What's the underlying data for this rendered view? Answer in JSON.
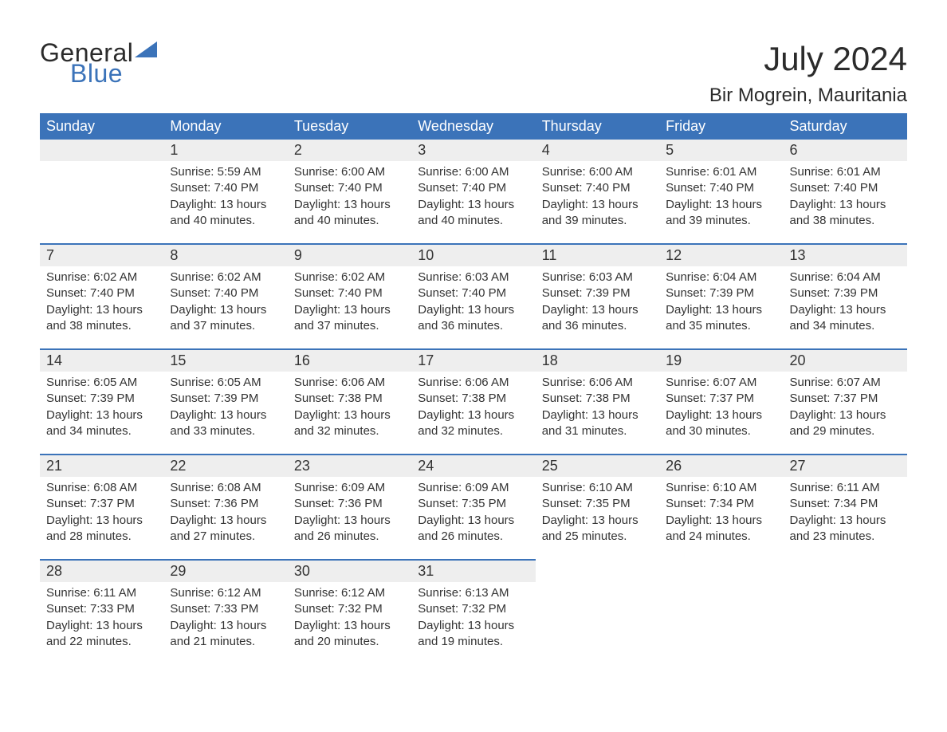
{
  "logo": {
    "top": "General",
    "bottom": "Blue"
  },
  "header": {
    "month": "July 2024",
    "location": "Bir Mogrein, Mauritania"
  },
  "colors": {
    "brand_blue": "#3b73b9",
    "header_bg": "#3b73b9",
    "header_text": "#ffffff",
    "daynum_bg": "#eeeeee",
    "text": "#333333",
    "background": "#ffffff"
  },
  "typography": {
    "month_fontsize": 42,
    "location_fontsize": 24,
    "dayheader_fontsize": 18,
    "daynum_fontsize": 18,
    "body_fontsize": 15
  },
  "day_headers": [
    "Sunday",
    "Monday",
    "Tuesday",
    "Wednesday",
    "Thursday",
    "Friday",
    "Saturday"
  ],
  "weeks": [
    [
      null,
      {
        "n": "1",
        "sunrise": "Sunrise: 5:59 AM",
        "sunset": "Sunset: 7:40 PM",
        "d1": "Daylight: 13 hours",
        "d2": "and 40 minutes."
      },
      {
        "n": "2",
        "sunrise": "Sunrise: 6:00 AM",
        "sunset": "Sunset: 7:40 PM",
        "d1": "Daylight: 13 hours",
        "d2": "and 40 minutes."
      },
      {
        "n": "3",
        "sunrise": "Sunrise: 6:00 AM",
        "sunset": "Sunset: 7:40 PM",
        "d1": "Daylight: 13 hours",
        "d2": "and 40 minutes."
      },
      {
        "n": "4",
        "sunrise": "Sunrise: 6:00 AM",
        "sunset": "Sunset: 7:40 PM",
        "d1": "Daylight: 13 hours",
        "d2": "and 39 minutes."
      },
      {
        "n": "5",
        "sunrise": "Sunrise: 6:01 AM",
        "sunset": "Sunset: 7:40 PM",
        "d1": "Daylight: 13 hours",
        "d2": "and 39 minutes."
      },
      {
        "n": "6",
        "sunrise": "Sunrise: 6:01 AM",
        "sunset": "Sunset: 7:40 PM",
        "d1": "Daylight: 13 hours",
        "d2": "and 38 minutes."
      }
    ],
    [
      {
        "n": "7",
        "sunrise": "Sunrise: 6:02 AM",
        "sunset": "Sunset: 7:40 PM",
        "d1": "Daylight: 13 hours",
        "d2": "and 38 minutes."
      },
      {
        "n": "8",
        "sunrise": "Sunrise: 6:02 AM",
        "sunset": "Sunset: 7:40 PM",
        "d1": "Daylight: 13 hours",
        "d2": "and 37 minutes."
      },
      {
        "n": "9",
        "sunrise": "Sunrise: 6:02 AM",
        "sunset": "Sunset: 7:40 PM",
        "d1": "Daylight: 13 hours",
        "d2": "and 37 minutes."
      },
      {
        "n": "10",
        "sunrise": "Sunrise: 6:03 AM",
        "sunset": "Sunset: 7:40 PM",
        "d1": "Daylight: 13 hours",
        "d2": "and 36 minutes."
      },
      {
        "n": "11",
        "sunrise": "Sunrise: 6:03 AM",
        "sunset": "Sunset: 7:39 PM",
        "d1": "Daylight: 13 hours",
        "d2": "and 36 minutes."
      },
      {
        "n": "12",
        "sunrise": "Sunrise: 6:04 AM",
        "sunset": "Sunset: 7:39 PM",
        "d1": "Daylight: 13 hours",
        "d2": "and 35 minutes."
      },
      {
        "n": "13",
        "sunrise": "Sunrise: 6:04 AM",
        "sunset": "Sunset: 7:39 PM",
        "d1": "Daylight: 13 hours",
        "d2": "and 34 minutes."
      }
    ],
    [
      {
        "n": "14",
        "sunrise": "Sunrise: 6:05 AM",
        "sunset": "Sunset: 7:39 PM",
        "d1": "Daylight: 13 hours",
        "d2": "and 34 minutes."
      },
      {
        "n": "15",
        "sunrise": "Sunrise: 6:05 AM",
        "sunset": "Sunset: 7:39 PM",
        "d1": "Daylight: 13 hours",
        "d2": "and 33 minutes."
      },
      {
        "n": "16",
        "sunrise": "Sunrise: 6:06 AM",
        "sunset": "Sunset: 7:38 PM",
        "d1": "Daylight: 13 hours",
        "d2": "and 32 minutes."
      },
      {
        "n": "17",
        "sunrise": "Sunrise: 6:06 AM",
        "sunset": "Sunset: 7:38 PM",
        "d1": "Daylight: 13 hours",
        "d2": "and 32 minutes."
      },
      {
        "n": "18",
        "sunrise": "Sunrise: 6:06 AM",
        "sunset": "Sunset: 7:38 PM",
        "d1": "Daylight: 13 hours",
        "d2": "and 31 minutes."
      },
      {
        "n": "19",
        "sunrise": "Sunrise: 6:07 AM",
        "sunset": "Sunset: 7:37 PM",
        "d1": "Daylight: 13 hours",
        "d2": "and 30 minutes."
      },
      {
        "n": "20",
        "sunrise": "Sunrise: 6:07 AM",
        "sunset": "Sunset: 7:37 PM",
        "d1": "Daylight: 13 hours",
        "d2": "and 29 minutes."
      }
    ],
    [
      {
        "n": "21",
        "sunrise": "Sunrise: 6:08 AM",
        "sunset": "Sunset: 7:37 PM",
        "d1": "Daylight: 13 hours",
        "d2": "and 28 minutes."
      },
      {
        "n": "22",
        "sunrise": "Sunrise: 6:08 AM",
        "sunset": "Sunset: 7:36 PM",
        "d1": "Daylight: 13 hours",
        "d2": "and 27 minutes."
      },
      {
        "n": "23",
        "sunrise": "Sunrise: 6:09 AM",
        "sunset": "Sunset: 7:36 PM",
        "d1": "Daylight: 13 hours",
        "d2": "and 26 minutes."
      },
      {
        "n": "24",
        "sunrise": "Sunrise: 6:09 AM",
        "sunset": "Sunset: 7:35 PM",
        "d1": "Daylight: 13 hours",
        "d2": "and 26 minutes."
      },
      {
        "n": "25",
        "sunrise": "Sunrise: 6:10 AM",
        "sunset": "Sunset: 7:35 PM",
        "d1": "Daylight: 13 hours",
        "d2": "and 25 minutes."
      },
      {
        "n": "26",
        "sunrise": "Sunrise: 6:10 AM",
        "sunset": "Sunset: 7:34 PM",
        "d1": "Daylight: 13 hours",
        "d2": "and 24 minutes."
      },
      {
        "n": "27",
        "sunrise": "Sunrise: 6:11 AM",
        "sunset": "Sunset: 7:34 PM",
        "d1": "Daylight: 13 hours",
        "d2": "and 23 minutes."
      }
    ],
    [
      {
        "n": "28",
        "sunrise": "Sunrise: 6:11 AM",
        "sunset": "Sunset: 7:33 PM",
        "d1": "Daylight: 13 hours",
        "d2": "and 22 minutes."
      },
      {
        "n": "29",
        "sunrise": "Sunrise: 6:12 AM",
        "sunset": "Sunset: 7:33 PM",
        "d1": "Daylight: 13 hours",
        "d2": "and 21 minutes."
      },
      {
        "n": "30",
        "sunrise": "Sunrise: 6:12 AM",
        "sunset": "Sunset: 7:32 PM",
        "d1": "Daylight: 13 hours",
        "d2": "and 20 minutes."
      },
      {
        "n": "31",
        "sunrise": "Sunrise: 6:13 AM",
        "sunset": "Sunset: 7:32 PM",
        "d1": "Daylight: 13 hours",
        "d2": "and 19 minutes."
      },
      null,
      null,
      null
    ]
  ]
}
